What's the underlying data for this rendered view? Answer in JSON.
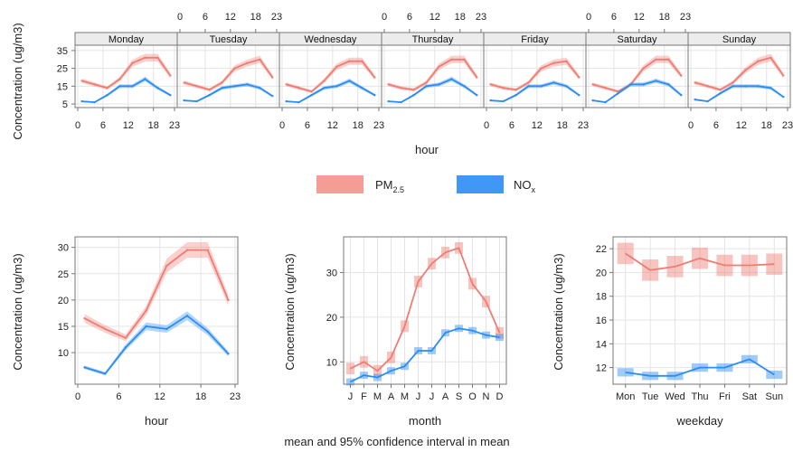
{
  "colors": {
    "pm25": "#f07c72",
    "nox": "#2b8cf5",
    "grid": "#e4e4e4",
    "strip_bg": "#ececec",
    "frame": "#777777"
  },
  "shared": {
    "ylabel": "Concentration (ug/m3)",
    "caption": "mean and 95% confidence interval in mean"
  },
  "legend": {
    "pm25": {
      "main": "PM",
      "sub": "2.5"
    },
    "nox": {
      "main": "NO",
      "sub": "x"
    }
  },
  "chart_data": [
    {
      "type": "line",
      "panel": "hour-by-weekday",
      "xlabel": "hour",
      "ylabel": "Concentration (ug/m3)",
      "xlim": [
        0,
        23
      ],
      "ylim": [
        3,
        38
      ],
      "x_ticks": [
        0,
        6,
        12,
        18,
        23
      ],
      "y_ticks": [
        5,
        15,
        25,
        35
      ],
      "x": [
        1,
        4,
        7,
        10,
        13,
        16,
        19,
        22
      ],
      "facets": [
        {
          "name": "Monday",
          "series": [
            {
              "key": "pm25",
              "values": [
                18,
                16,
                14,
                19,
                28,
                31,
                31,
                21
              ]
            },
            {
              "key": "nox",
              "values": [
                6.5,
                6,
                10,
                15,
                15,
                19,
                14,
                10
              ]
            }
          ]
        },
        {
          "name": "Tuesday",
          "series": [
            {
              "key": "pm25",
              "values": [
                17,
                15,
                13,
                17,
                25,
                28,
                30,
                20
              ]
            },
            {
              "key": "nox",
              "values": [
                7,
                6.5,
                10,
                14,
                15,
                16,
                14,
                9.5
              ]
            }
          ]
        },
        {
          "name": "Wednesday",
          "series": [
            {
              "key": "pm25",
              "values": [
                16,
                14,
                12,
                18,
                26,
                29,
                29,
                20
              ]
            },
            {
              "key": "nox",
              "values": [
                6.5,
                6,
                10,
                14,
                15,
                18,
                14,
                10
              ]
            }
          ]
        },
        {
          "name": "Thursday",
          "series": [
            {
              "key": "pm25",
              "values": [
                16,
                14,
                13,
                17,
                26,
                30,
                30,
                20
              ]
            },
            {
              "key": "nox",
              "values": [
                6.5,
                6,
                10,
                15,
                16,
                19,
                15,
                10
              ]
            }
          ]
        },
        {
          "name": "Friday",
          "series": [
            {
              "key": "pm25",
              "values": [
                16,
                14,
                13,
                17,
                25,
                28,
                29,
                20
              ]
            },
            {
              "key": "nox",
              "values": [
                7,
                6.5,
                10,
                15,
                15,
                17,
                15,
                10
              ]
            }
          ]
        },
        {
          "name": "Saturday",
          "series": [
            {
              "key": "pm25",
              "values": [
                16,
                14,
                12,
                16,
                25,
                30,
                30,
                21
              ]
            },
            {
              "key": "nox",
              "values": [
                7,
                6,
                11,
                16,
                16,
                18,
                16,
                10
              ]
            }
          ]
        },
        {
          "name": "Sunday",
          "series": [
            {
              "key": "pm25",
              "values": [
                17,
                15,
                13,
                17,
                24,
                29,
                31,
                21
              ]
            },
            {
              "key": "nox",
              "values": [
                7.5,
                6.5,
                11,
                15,
                15,
                15,
                14,
                9
              ]
            }
          ]
        }
      ]
    },
    {
      "type": "line",
      "panel": "hour",
      "xlabel": "hour",
      "ylabel": "Concentration (ug/m3)",
      "xlim": [
        0,
        23
      ],
      "ylim": [
        4,
        32
      ],
      "x_ticks": [
        0,
        6,
        12,
        18,
        23
      ],
      "y_ticks": [
        10,
        15,
        20,
        25,
        30
      ],
      "x": [
        1,
        4,
        7,
        10,
        13,
        16,
        19,
        22
      ],
      "series": [
        {
          "key": "pm25",
          "values": [
            16.5,
            14.5,
            12.8,
            18,
            26.5,
            29.5,
            29.5,
            20
          ]
        },
        {
          "key": "nox",
          "values": [
            7.2,
            6,
            11,
            15,
            14.5,
            17,
            14,
            9.8
          ]
        }
      ]
    },
    {
      "type": "line",
      "panel": "month",
      "xlabel": "month",
      "ylabel": "Concentration (ug/m3)",
      "ylim": [
        5,
        38
      ],
      "y_ticks": [
        10,
        20,
        30
      ],
      "categories": [
        "J",
        "F",
        "M",
        "A",
        "M",
        "J",
        "J",
        "A",
        "S",
        "O",
        "N",
        "D"
      ],
      "series": [
        {
          "key": "pm25",
          "values": [
            8.5,
            10,
            8,
            11,
            18,
            28,
            32,
            34.5,
            35.5,
            27.5,
            23.5,
            16.5
          ]
        },
        {
          "key": "nox",
          "values": [
            5.5,
            7,
            6.5,
            8,
            9,
            12.5,
            12.5,
            16.5,
            17.5,
            17,
            16,
            15.5
          ]
        }
      ]
    },
    {
      "type": "line",
      "panel": "weekday",
      "xlabel": "weekday",
      "ylabel": "Concentration (ug/m3)",
      "ylim": [
        10.6,
        23
      ],
      "y_ticks": [
        12,
        14,
        16,
        18,
        20,
        22
      ],
      "categories": [
        "Mon",
        "Tue",
        "Wed",
        "Thu",
        "Fri",
        "Sat",
        "Sun"
      ],
      "series": [
        {
          "key": "pm25",
          "values": [
            21.6,
            20.2,
            20.5,
            21.2,
            20.6,
            20.6,
            20.7
          ]
        },
        {
          "key": "nox",
          "values": [
            11.6,
            11.3,
            11.3,
            12,
            12,
            12.7,
            11.4
          ]
        }
      ]
    }
  ]
}
